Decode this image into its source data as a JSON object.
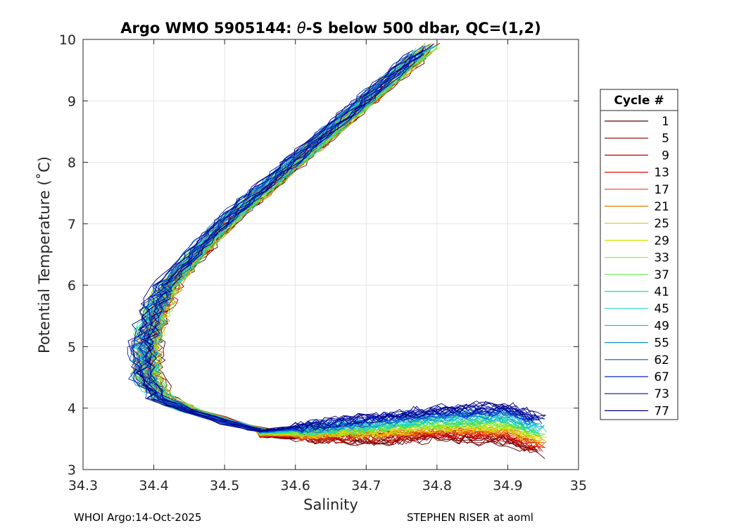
{
  "chart_data": {
    "type": "line",
    "title_prefix": "Argo WMO 5905144: ",
    "title_symbol": "θ",
    "title_suffix": "-S below 500 dbar,  QC=(1,2)",
    "xlabel": "Salinity",
    "ylabel": "Potential Temperature (˚C)",
    "xlim": [
      34.3,
      35
    ],
    "ylim": [
      3,
      10
    ],
    "xticks": [
      "34.3",
      "34.4",
      "34.5",
      "34.6",
      "34.7",
      "34.8",
      "34.9",
      "35"
    ],
    "yticks": [
      "3",
      "4",
      "5",
      "6",
      "7",
      "8",
      "9",
      "10"
    ],
    "grid": true,
    "legend": {
      "title": "Cycle #",
      "placement": "right-outside",
      "entries": [
        "1",
        "5",
        "9",
        "13",
        "17",
        "21",
        "25",
        "29",
        "33",
        "37",
        "41",
        "45",
        "49",
        "55",
        "62",
        "67",
        "73",
        "77"
      ],
      "colors": [
        "#5a0000",
        "#8c0000",
        "#c00000",
        "#dd1010",
        "#f04010",
        "#e07a00",
        "#e8c400",
        "#d8e000",
        "#a8ee20",
        "#5ce840",
        "#28dc80",
        "#20d8c0",
        "#20c0e0",
        "#1090c8",
        "#1050d0",
        "#0828c0",
        "#0010b0",
        "#000080"
      ]
    },
    "envelope": {
      "upper_curve": {
        "theta": [
          10.0,
          9.5,
          9.0,
          8.5,
          8.0,
          7.5,
          7.0,
          6.5,
          6.0,
          5.5,
          5.0,
          4.5,
          4.2,
          4.0,
          3.9,
          3.8,
          3.7,
          3.6
        ],
        "salinity": [
          34.8,
          34.75,
          34.7,
          34.65,
          34.6,
          34.55,
          34.5,
          34.46,
          34.42,
          34.4,
          34.39,
          34.39,
          34.41,
          34.44,
          34.47,
          34.5,
          34.53,
          34.57
        ]
      },
      "lower_branch": {
        "salinity": [
          34.52,
          34.6,
          34.7,
          34.8,
          34.9,
          34.94
        ],
        "theta_blue": [
          3.6,
          3.7,
          3.85,
          4.0,
          4.05,
          3.9
        ],
        "theta_red": [
          3.55,
          3.5,
          3.45,
          3.5,
          3.45,
          3.25
        ]
      }
    }
  },
  "footer": {
    "left": "WHOI Argo:14-Oct-2025",
    "right": "STEPHEN RISER at aoml"
  }
}
